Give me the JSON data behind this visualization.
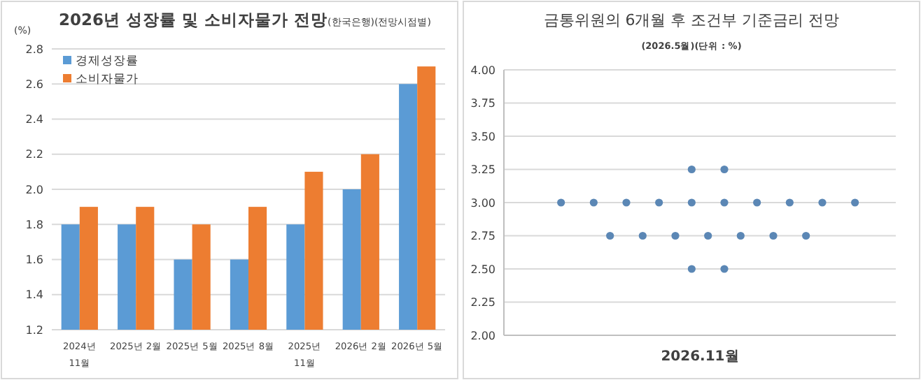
{
  "chart_data": [
    {
      "type": "bar",
      "title": "2026년 성장률 및 소비자물가 전망",
      "subtitle": "(한국은행)(전망시점별)",
      "ylabel": "(%)",
      "categories": [
        "2024년 11월",
        "2025년 2월",
        "2025년 5월",
        "2025년 8월",
        "2025년 11월",
        "2026년 2월",
        "2026년 5월"
      ],
      "series": [
        {
          "name": "경제성장률",
          "color": "#5b9bd5",
          "values": [
            1.8,
            1.8,
            1.6,
            1.6,
            1.8,
            2.0,
            2.6
          ]
        },
        {
          "name": "소비자물가",
          "color": "#ed7d31",
          "values": [
            1.9,
            1.9,
            1.8,
            1.9,
            2.1,
            2.2,
            2.7
          ]
        }
      ],
      "ylim": [
        1.2,
        2.8
      ],
      "yticks": [
        {
          "value": 1.2,
          "label": "1.2"
        },
        {
          "value": 1.4,
          "label": "1.4"
        },
        {
          "value": 1.6,
          "label": "1.6"
        },
        {
          "value": 1.8,
          "label": "1.8"
        },
        {
          "value": 2.0,
          "label": "2.0"
        },
        {
          "value": 2.2,
          "label": "2.2"
        },
        {
          "value": 2.4,
          "label": "2.4"
        },
        {
          "value": 2.6,
          "label": "2.6"
        },
        {
          "value": 2.8,
          "label": "2.8"
        }
      ],
      "grid": "y",
      "legend": "top left"
    },
    {
      "type": "scatter",
      "title": "금통위원의 6개월 후 조건부 기준금리 전망",
      "subtitle": "(2026.5월)(단위 : %)",
      "xlabel": "2026.11월",
      "categories": [
        null,
        null,
        null,
        null,
        null,
        null,
        null,
        null,
        null,
        null,
        null,
        null,
        null,
        null,
        null,
        null,
        null,
        null,
        null,
        null,
        null,
        null,
        null,
        null
      ],
      "series": [
        {
          "color": "#5b87b5",
          "values": [
            null,
            null,
            null,
            null,
            null,
            null,
            null,
            null,
            null,
            null,
            null,
            3.25,
            null,
            3.25,
            null,
            null,
            null,
            null,
            null,
            null,
            null,
            null,
            null,
            null
          ]
        },
        {
          "color": "#5b87b5",
          "values": [
            null,
            null,
            null,
            3.0,
            null,
            3.0,
            null,
            3.0,
            null,
            3.0,
            null,
            3.0,
            null,
            3.0,
            null,
            3.0,
            null,
            3.0,
            null,
            3.0,
            null,
            3.0,
            null,
            null
          ]
        },
        {
          "color": "#5b87b5",
          "values": [
            null,
            null,
            null,
            null,
            null,
            null,
            2.75,
            null,
            2.75,
            null,
            2.75,
            null,
            2.75,
            null,
            2.75,
            null,
            2.75,
            null,
            2.75,
            null,
            null,
            null,
            null,
            null
          ]
        },
        {
          "color": "#5b87b5",
          "values": [
            null,
            null,
            null,
            null,
            null,
            null,
            null,
            null,
            null,
            null,
            null,
            2.5,
            null,
            2.5,
            null,
            null,
            null,
            null,
            null,
            null,
            null,
            null,
            null,
            null
          ]
        }
      ],
      "ylim": [
        2.0,
        4.0
      ],
      "yticks": [
        {
          "value": 2.0,
          "label": "2.00"
        },
        {
          "value": 2.25,
          "label": "2.25"
        },
        {
          "value": 2.5,
          "label": "2.50"
        },
        {
          "value": 2.75,
          "label": "2.75"
        },
        {
          "value": 3.0,
          "label": "3.00"
        },
        {
          "value": 3.25,
          "label": "3.25"
        },
        {
          "value": 3.5,
          "label": "3.50"
        },
        {
          "value": 3.75,
          "label": "3.75"
        },
        {
          "value": 4.0,
          "label": "4.00"
        }
      ],
      "grid": "y",
      "marker": "circle"
    }
  ]
}
